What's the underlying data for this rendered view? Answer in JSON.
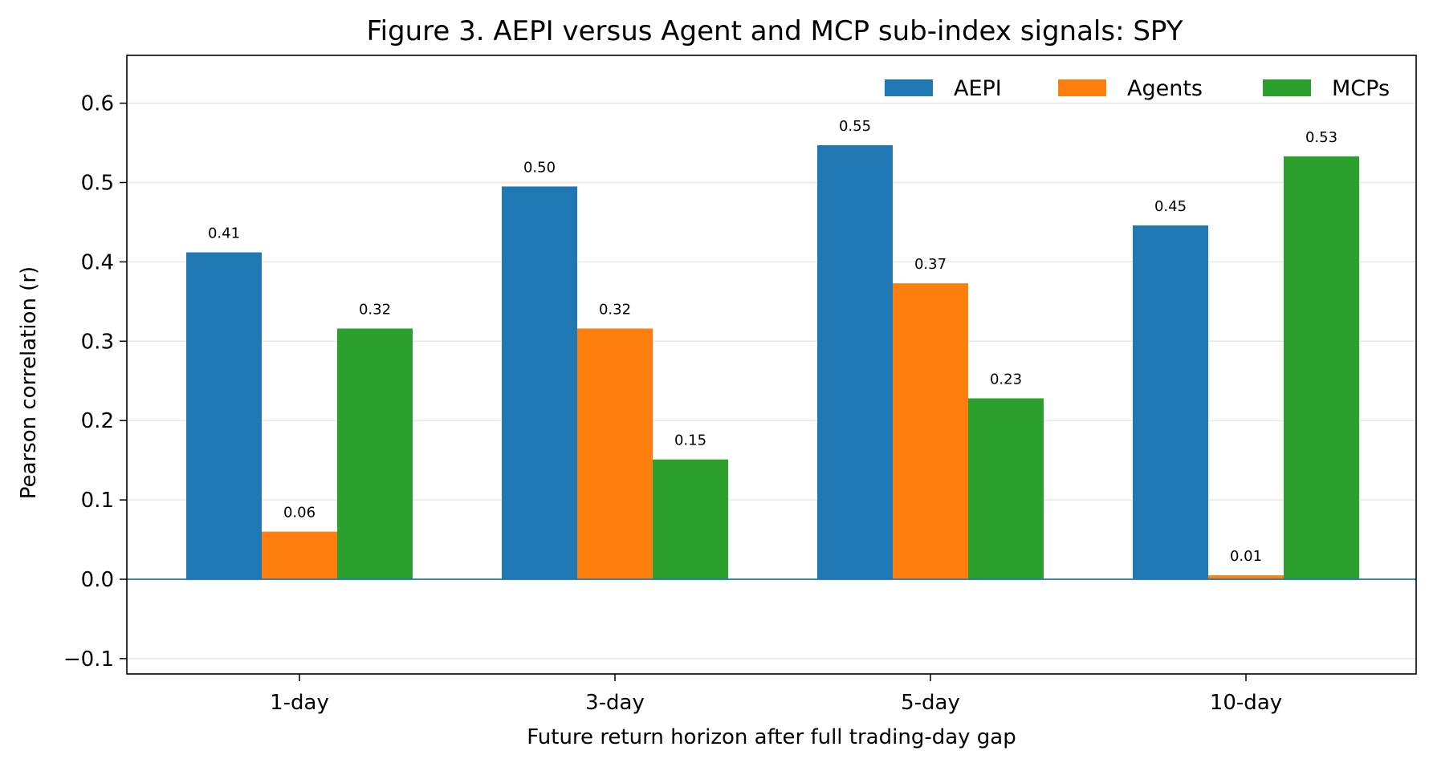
{
  "chart_data": {
    "type": "bar",
    "title": "Figure 3. AEPI versus Agent and MCP sub-index signals: SPY",
    "xlabel": "Future return horizon after full trading-day gap",
    "ylabel": "Pearson correlation (r)",
    "categories": [
      "1-day",
      "3-day",
      "5-day",
      "10-day"
    ],
    "series": [
      {
        "name": "AEPI",
        "color": "#1f77b4",
        "values": [
          0.412,
          0.495,
          0.547,
          0.446
        ],
        "labels": [
          "0.41",
          "0.50",
          "0.55",
          "0.45"
        ]
      },
      {
        "name": "Agents",
        "color": "#ff7f0e",
        "values": [
          0.06,
          0.316,
          0.373,
          0.005
        ],
        "labels": [
          "0.06",
          "0.32",
          "0.37",
          "0.01"
        ]
      },
      {
        "name": "MCPs",
        "color": "#2ca02c",
        "values": [
          0.316,
          0.151,
          0.228,
          0.533
        ],
        "labels": [
          "0.32",
          "0.15",
          "0.23",
          "0.53"
        ]
      }
    ],
    "ylim": [
      -0.12,
      0.66
    ],
    "yticks": [
      -0.1,
      0.0,
      0.1,
      0.2,
      0.3,
      0.4,
      0.5,
      0.6
    ],
    "ytick_labels": [
      "−0.1",
      "0.0",
      "0.1",
      "0.2",
      "0.3",
      "0.4",
      "0.5",
      "0.6"
    ],
    "grid": "horizontal",
    "legend_position": "top-right",
    "zero_line_color": "#1f77b4"
  }
}
